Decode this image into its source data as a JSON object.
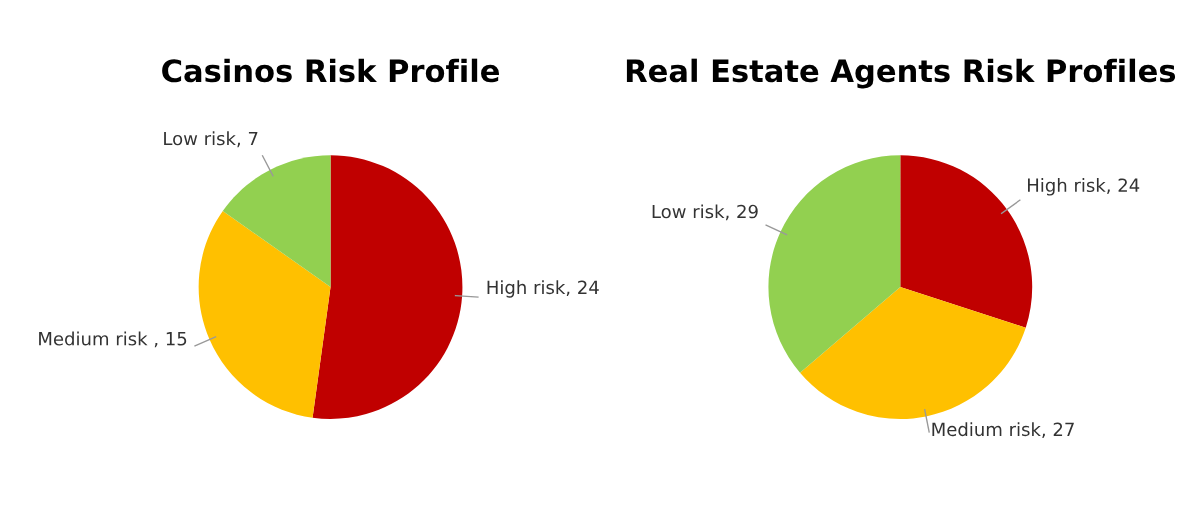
{
  "chart_data": [
    {
      "type": "pie",
      "title": "Casinos Risk Profile",
      "categories": [
        "High risk",
        "Medium risk ",
        "Low risk"
      ],
      "values": [
        24,
        15,
        7
      ],
      "value_labels": [
        ", 24",
        ", 15",
        ", 7"
      ],
      "colors": [
        "#c00000",
        "#ffc000",
        "#92d050"
      ]
    },
    {
      "type": "pie",
      "title": "Real Estate Agents Risk Profiles",
      "categories": [
        "High risk",
        "Medium risk",
        "Low risk"
      ],
      "values": [
        24,
        27,
        29
      ],
      "value_labels": [
        ", 24",
        ", 27",
        ", 29"
      ],
      "colors": [
        "#c00000",
        "#ffc000",
        "#92d050"
      ]
    }
  ]
}
